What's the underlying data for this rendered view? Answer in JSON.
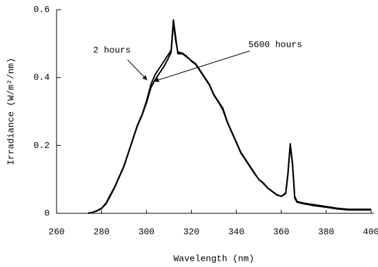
{
  "chart_data": {
    "type": "line",
    "xlabel": "Wavelength (nm)",
    "ylabel": "Irradiance (W/m²/nm)",
    "annotations": [
      "2 hours",
      "5600 hours"
    ],
    "x": [
      274,
      276,
      278,
      280,
      282,
      284,
      286,
      288,
      290,
      292,
      294,
      296,
      298,
      300,
      302,
      304,
      306,
      308,
      310,
      311,
      312,
      313,
      314,
      316,
      318,
      320,
      322,
      324,
      326,
      328,
      330,
      332,
      334,
      336,
      338,
      340,
      342,
      344,
      346,
      348,
      350,
      352,
      354,
      356,
      358,
      360,
      362,
      363,
      364,
      365,
      366,
      367,
      370,
      375,
      380,
      385,
      390,
      395,
      400
    ],
    "series": [
      {
        "name": "2 hours",
        "color": "#000000",
        "values": [
          0,
          0.003,
          0.008,
          0.015,
          0.03,
          0.055,
          0.08,
          0.11,
          0.14,
          0.18,
          0.22,
          0.26,
          0.29,
          0.33,
          0.38,
          0.41,
          0.43,
          0.45,
          0.47,
          0.48,
          0.57,
          0.52,
          0.47,
          0.47,
          0.46,
          0.45,
          0.44,
          0.42,
          0.4,
          0.38,
          0.35,
          0.33,
          0.31,
          0.27,
          0.24,
          0.21,
          0.18,
          0.16,
          0.14,
          0.12,
          0.1,
          0.09,
          0.075,
          0.065,
          0.055,
          0.05,
          0.06,
          0.12,
          0.205,
          0.15,
          0.05,
          0.035,
          0.03,
          0.025,
          0.02,
          0.015,
          0.012,
          0.012,
          0.012
        ]
      },
      {
        "name": "5600 hours",
        "color": "#000000",
        "values": [
          0,
          0.003,
          0.007,
          0.014,
          0.028,
          0.052,
          0.078,
          0.108,
          0.138,
          0.178,
          0.218,
          0.258,
          0.288,
          0.325,
          0.37,
          0.395,
          0.415,
          0.435,
          0.46,
          0.475,
          0.56,
          0.51,
          0.475,
          0.472,
          0.462,
          0.448,
          0.438,
          0.418,
          0.398,
          0.378,
          0.348,
          0.328,
          0.305,
          0.268,
          0.238,
          0.208,
          0.178,
          0.158,
          0.138,
          0.118,
          0.1,
          0.088,
          0.074,
          0.064,
          0.054,
          0.05,
          0.058,
          0.115,
          0.2,
          0.145,
          0.045,
          0.033,
          0.028,
          0.022,
          0.018,
          0.013,
          0.01,
          0.01,
          0.01
        ]
      }
    ],
    "xlim": [
      260,
      400
    ],
    "ylim": [
      0,
      0.6
    ],
    "xticks": [
      260,
      280,
      300,
      320,
      340,
      360,
      380,
      400
    ],
    "yticks": [
      0,
      0.2,
      0.4,
      0.6
    ],
    "grid": false
  }
}
